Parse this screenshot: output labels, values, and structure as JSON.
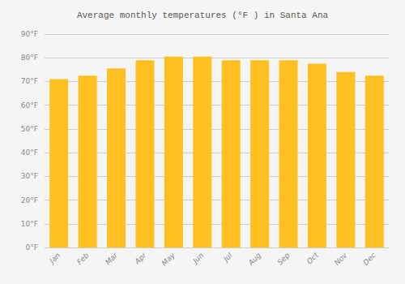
{
  "chart_data": {
    "type": "bar",
    "title": "Average monthly temperatures (°F ) in Santa Ana",
    "categories": [
      "Jan",
      "Feb",
      "Mar",
      "Apr",
      "May",
      "Jun",
      "Jul",
      "Aug",
      "Sep",
      "Oct",
      "Nov",
      "Dec"
    ],
    "values": [
      71,
      72.5,
      75.5,
      79,
      80.5,
      80.5,
      79,
      79,
      79,
      77.5,
      74,
      72.5
    ],
    "color": "#FFC022",
    "ylim": [
      0,
      90
    ],
    "yticks": [
      {
        "value": 0,
        "label": "0°F"
      },
      {
        "value": 10,
        "label": "10°F"
      },
      {
        "value": 20,
        "label": "20°F"
      },
      {
        "value": 30,
        "label": "30°F"
      },
      {
        "value": 40,
        "label": "40°F"
      },
      {
        "value": 50,
        "label": "50°F"
      },
      {
        "value": 60,
        "label": "60°F"
      },
      {
        "value": 70,
        "label": "70°F"
      },
      {
        "value": 80,
        "label": "80°F"
      },
      {
        "value": 90,
        "label": "90°F"
      }
    ],
    "grid": true
  }
}
